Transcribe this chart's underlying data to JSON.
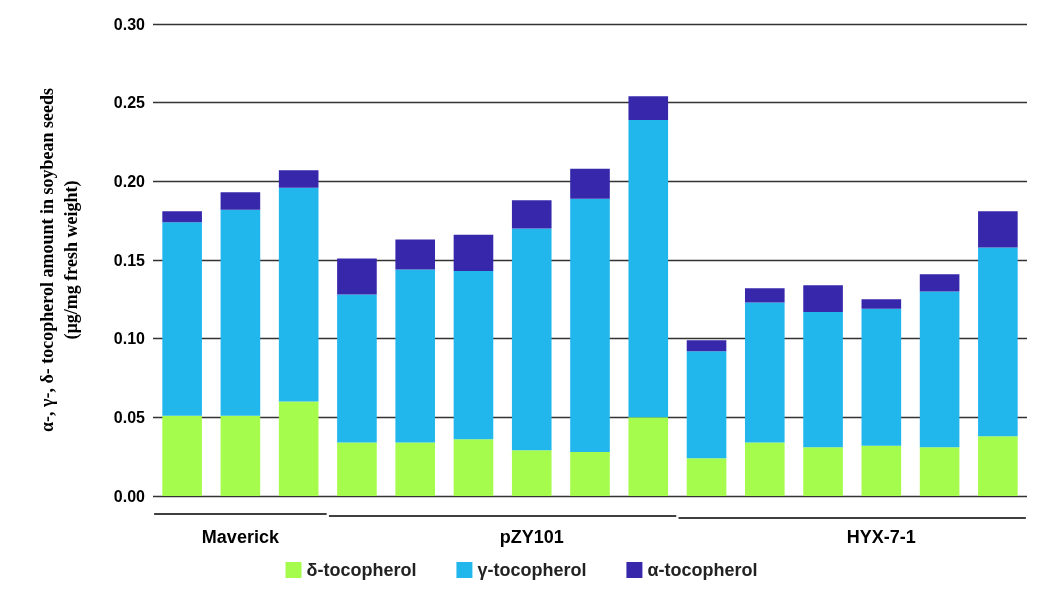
{
  "chart_data": {
    "type": "bar",
    "stacked": true,
    "ylabel": "α-, γ-, δ- tocopherol amount in soybean seeds\n(µg/mg fresh weight)",
    "categories": [
      null,
      "Maverick",
      null,
      null,
      null,
      null,
      "pZY101",
      null,
      null,
      null,
      null,
      null,
      "HYX-7-1",
      null,
      null
    ],
    "series": [
      {
        "name": "δ-tocopherol",
        "color": "#a6fc4c",
        "values": [
          0.051,
          0.051,
          0.06,
          0.034,
          0.034,
          0.036,
          0.029,
          0.028,
          0.05,
          0.024,
          0.034,
          0.031,
          0.032,
          0.031,
          0.038
        ]
      },
      {
        "name": "γ-tocopherol",
        "color": "#21b7ed",
        "values": [
          0.123,
          0.131,
          0.136,
          0.094,
          0.11,
          0.107,
          0.141,
          0.161,
          0.189,
          0.068,
          0.089,
          0.086,
          0.087,
          0.099,
          0.12
        ]
      },
      {
        "name": "α-tocopherol",
        "color": "#3727aa",
        "values": [
          0.007,
          0.011,
          0.011,
          0.023,
          0.019,
          0.023,
          0.018,
          0.019,
          0.015,
          0.007,
          0.009,
          0.017,
          0.006,
          0.011,
          0.023
        ]
      }
    ],
    "ylim": [
      0,
      0.3
    ],
    "yticks": [
      {
        "value": 0,
        "label": "0.00"
      },
      0.05,
      {
        "value": 0.1,
        "label": "0.10"
      },
      0.15,
      {
        "value": 0.2,
        "label": "0.20"
      },
      0.25,
      {
        "value": 0.3,
        "label": "0.30"
      }
    ],
    "grid": "y",
    "legend": "bottom"
  }
}
